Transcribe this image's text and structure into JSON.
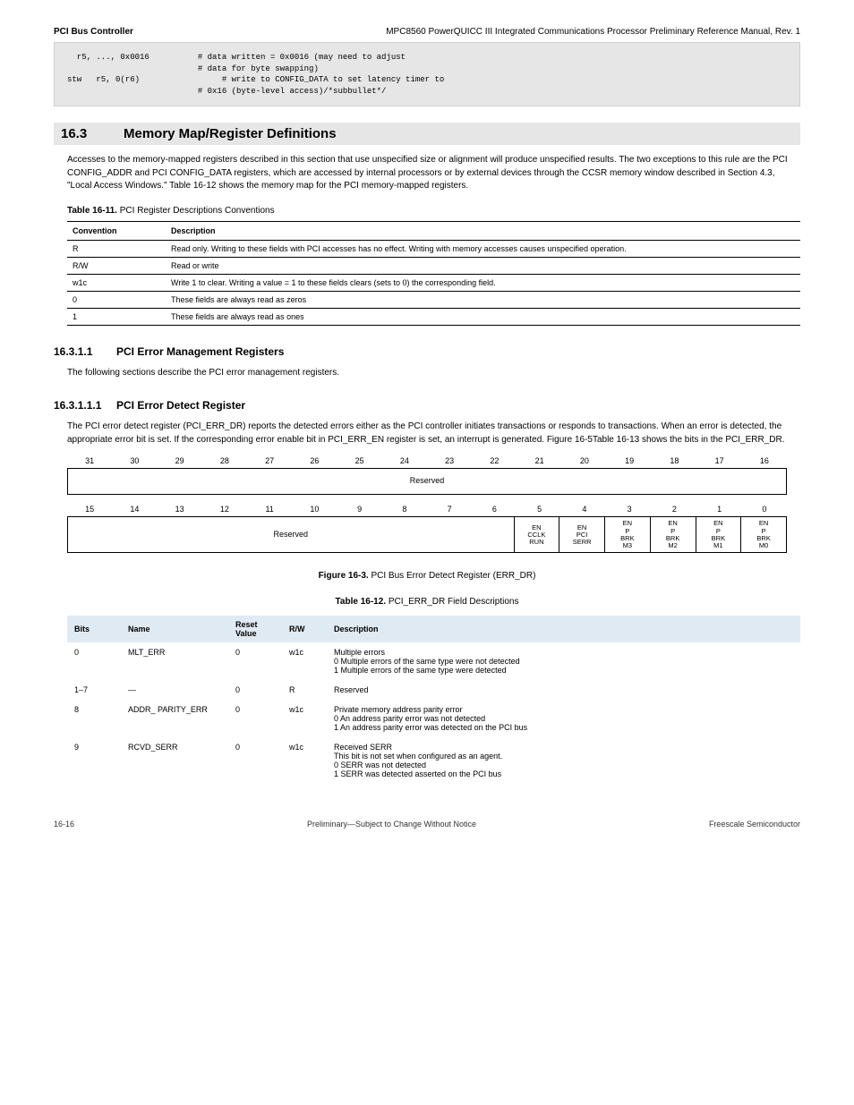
{
  "header": {
    "left_bold": "PCI Bus Controller",
    "right_prefix": "MPC8560 PowerQUICC III Integrated Communications Processor Preliminary Reference Manual,",
    "right_rev": " Rev. 1"
  },
  "codeblock": "  r5, ..., 0x0016          # data written = 0x0016 (may need to adjust\n                           # data for byte swapping)\nstw   r5, 0(r6)                 # write to CONFIG_DATA to set latency timer to\n                           # 0x16 (byte-level access)/*subbullet*/",
  "section": {
    "number": "16.3",
    "title": "Memory Map/Register Definitions",
    "para": "Accesses to the memory-mapped registers described in this section that use unspecified size or alignment will produce unspecified results. The two exceptions to this rule are the PCI CONFIG_ADDR and PCI CONFIG_DATA registers, which are accessed by internal processors or by external devices through the CCSR memory window described in Section 4.3, \"Local Access Windows.\" Table 16-12 shows the memory map for the PCI memory-mapped registers."
  },
  "defs_table": {
    "title_prefix": "Table 16-11. ",
    "title_text": "PCI Register Descriptions Conventions",
    "columns": [
      "Convention",
      "Description"
    ],
    "rows": [
      [
        "R",
        "Read only. Writing to these fields with PCI accesses has no effect. Writing with memory accesses causes unspecified operation."
      ],
      [
        "R/W",
        "Read or write"
      ],
      [
        "w1c",
        "Write 1 to clear. Writing a value = 1 to these fields clears (sets to 0) the corresponding field."
      ],
      [
        "0",
        "These fields are always read as zeros"
      ],
      [
        "1",
        "These fields are always read as ones"
      ]
    ]
  },
  "subsection": {
    "number": "16.3.1.1",
    "title": "PCI Error Management Registers",
    "para1": "The following sections describe the PCI error management registers.",
    "sub_num": "16.3.1.1.1",
    "sub_title": "PCI Error Detect Register",
    "para2": "The PCI error detect register (PCI_ERR_DR) reports the detected errors either as the PCI controller initiates transactions or responds to transactions. When an error is detected, the appropriate error bit is set. If the corresponding error enable bit in PCI_ERR_EN register is set, an interrupt is generated. Figure 16-5Table 16-13 shows the bits in the PCI_ERR_DR."
  },
  "figure": {
    "title_prefix": "Figure 16-3. ",
    "title_text": "PCI Bus Error Detect Register (ERR_DR)",
    "row1_nums": [
      "31",
      "30",
      "29",
      "28",
      "27",
      "26",
      "25",
      "24",
      "23",
      "22",
      "21",
      "20",
      "19",
      "18",
      "17",
      "16"
    ],
    "row1_label": "Reserved",
    "row2_nums": [
      "15",
      "14",
      "13",
      "12",
      "11",
      "10",
      "9",
      "8",
      "7",
      "6",
      "5",
      "4",
      "3",
      "2",
      "1",
      "0"
    ],
    "row2_reserved": "Reserved",
    "row2_fields": [
      "EN_CCLK_RUN",
      "EN_PCI_SERR",
      "EN_P_BRK_M3",
      "EN_P_BRK_M2",
      "EN_P_BRK_M1",
      "EN_P_BRK_M0"
    ]
  },
  "bits_table": {
    "title_prefix": "Table 16-12. ",
    "title_text": "PCI_ERR_DR Field Descriptions",
    "columns": [
      "Bits",
      "Name",
      "Reset Value",
      "R/W",
      "Description"
    ],
    "rows": [
      {
        "bits": "0",
        "name": "MLT_ERR",
        "rst": "0",
        "rw": "w1c",
        "desc": "Multiple errors\n0  Multiple errors of the same type were not detected\n1  Multiple errors of the same type were detected"
      },
      {
        "bits": "1–7",
        "name": "—",
        "rst": "0",
        "rw": "R",
        "desc": "Reserved"
      },
      {
        "bits": "8",
        "name": "ADDR_ PARITY_ERR",
        "rst": "0",
        "rw": "w1c",
        "desc": "Private memory address parity error\n0  An address parity error was not detected\n1  An address parity error was detected on the PCI bus"
      },
      {
        "bits": "9",
        "name": "RCVD_SERR",
        "rst": "0",
        "rw": "w1c",
        "desc": "Received SERR\nThis bit is not set when configured as an agent.\n0  SERR was not detected\n1  SERR was detected asserted on the PCI bus"
      }
    ]
  },
  "footer": {
    "left": "16-16",
    "center": "Preliminary—Subject to Change Without Notice",
    "right": "Freescale Semiconductor"
  }
}
